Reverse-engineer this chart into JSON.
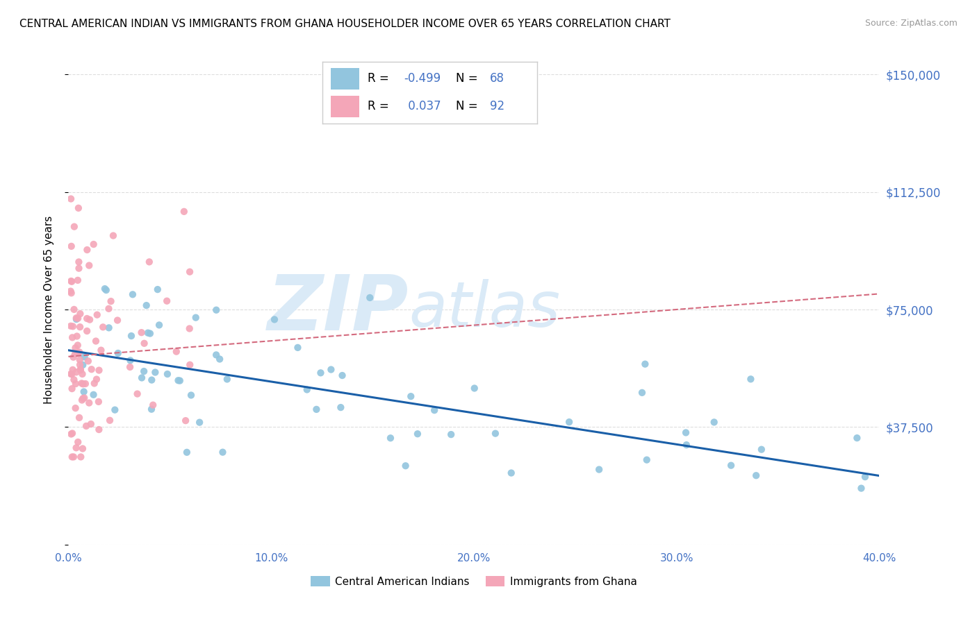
{
  "title": "CENTRAL AMERICAN INDIAN VS IMMIGRANTS FROM GHANA HOUSEHOLDER INCOME OVER 65 YEARS CORRELATION CHART",
  "source": "Source: ZipAtlas.com",
  "ylabel": "Householder Income Over 65 years",
  "xmin": 0.0,
  "xmax": 40.0,
  "ymin": 0,
  "ymax": 150000,
  "yticks": [
    0,
    37500,
    75000,
    112500,
    150000
  ],
  "ytick_labels": [
    "",
    "$37,500",
    "$75,000",
    "$112,500",
    "$150,000"
  ],
  "xticks": [
    0,
    10,
    20,
    30,
    40
  ],
  "xtick_labels": [
    "0.0%",
    "10.0%",
    "20.0%",
    "30.0%",
    "40.0%"
  ],
  "color_blue": "#92c5de",
  "color_pink": "#f4a6b8",
  "color_blue_line": "#1a5fa8",
  "color_pink_line": "#d46a7e",
  "color_axis_text": "#4472c4",
  "watermark_text": "ZIPatlas",
  "watermark_color": "#daeaf7",
  "grid_color": "#dddddd",
  "background_color": "#ffffff",
  "legend_r1": "-0.499",
  "legend_n1": "68",
  "legend_r2": " 0.037",
  "legend_n2": "92",
  "blue_trend_x0": 0,
  "blue_trend_y0": 62000,
  "blue_trend_x1": 40,
  "blue_trend_y1": 22000,
  "pink_trend_x0": 0,
  "pink_trend_y0": 60000,
  "pink_trend_x1": 40,
  "pink_trend_y1": 80000
}
